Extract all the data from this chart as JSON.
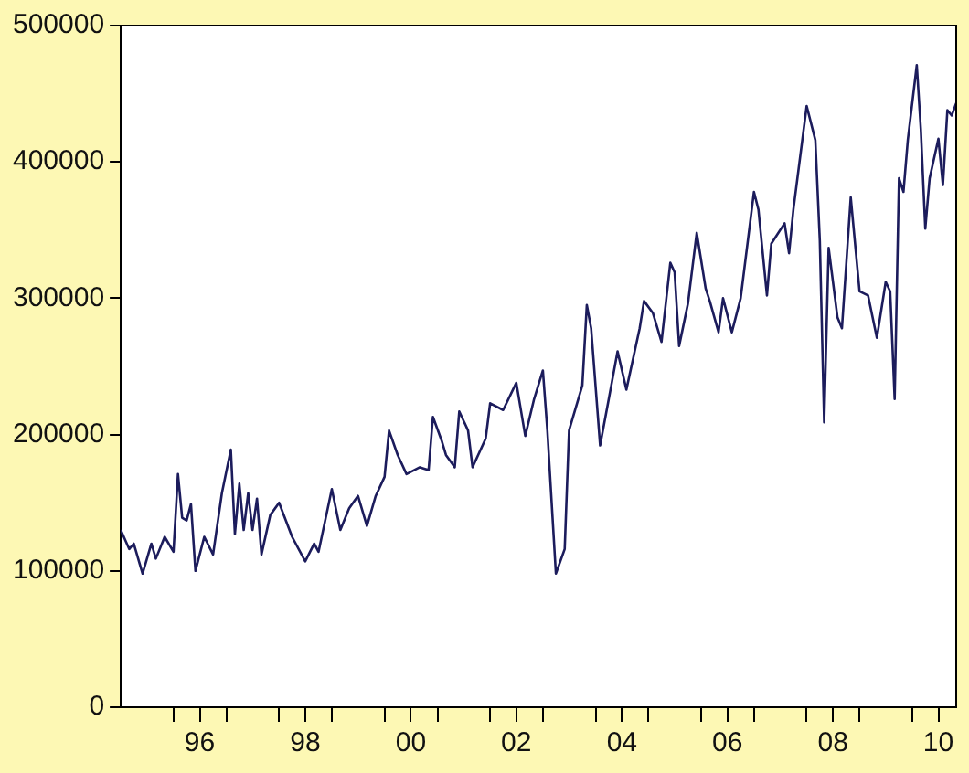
{
  "chart_data": {
    "type": "line",
    "color": "#1c1c5c",
    "line_style": "solid",
    "marker": "none",
    "grid": false,
    "legend": false,
    "x": [
      "1995-01",
      "1995-03",
      "1995-04",
      "1995-06",
      "1995-08",
      "1995-09",
      "1995-11",
      "1996-01",
      "1996-02",
      "1996-03",
      "1996-04",
      "1996-05",
      "1996-06",
      "1996-08",
      "1996-10",
      "1996-12",
      "1997-02",
      "1997-03",
      "1997-04",
      "1997-05",
      "1997-06",
      "1997-07",
      "1997-08",
      "1997-09",
      "1997-11",
      "1998-01",
      "1998-04",
      "1998-07",
      "1998-09",
      "1998-10",
      "1999-01",
      "1999-03",
      "1999-05",
      "1999-07",
      "1999-09",
      "1999-11",
      "2000-01",
      "2000-02",
      "2000-04",
      "2000-06",
      "2000-09",
      "2000-11",
      "2000-12",
      "2001-02",
      "2001-03",
      "2001-05",
      "2001-06",
      "2001-08",
      "2001-09",
      "2001-12",
      "2002-01",
      "2002-04",
      "2002-07",
      "2002-09",
      "2002-11",
      "2003-01",
      "2003-02",
      "2003-04",
      "2003-06",
      "2003-07",
      "2003-10",
      "2003-11",
      "2003-12",
      "2004-02",
      "2004-04",
      "2004-06",
      "2004-08",
      "2004-11",
      "2004-12",
      "2005-02",
      "2005-04",
      "2005-06",
      "2005-07",
      "2005-08",
      "2005-10",
      "2005-12",
      "2006-02",
      "2006-03",
      "2006-05",
      "2006-06",
      "2006-08",
      "2006-10",
      "2007-01",
      "2007-02",
      "2007-04",
      "2007-05",
      "2007-08",
      "2007-09",
      "2007-10",
      "2008-01",
      "2008-03",
      "2008-04",
      "2008-05",
      "2008-06",
      "2008-08",
      "2008-09",
      "2008-11",
      "2009-01",
      "2009-03",
      "2009-05",
      "2009-07",
      "2009-08",
      "2009-09",
      "2009-10",
      "2009-11",
      "2009-12",
      "2010-02",
      "2010-03",
      "2010-04",
      "2010-05",
      "2010-07",
      "2010-08",
      "2010-09",
      "2010-10",
      "2010-11"
    ],
    "values": [
      130000,
      116000,
      120000,
      98000,
      120000,
      109000,
      125000,
      114000,
      171000,
      139000,
      137000,
      149000,
      100000,
      125000,
      112000,
      157000,
      189000,
      127000,
      164000,
      130000,
      157000,
      130000,
      153000,
      112000,
      141000,
      150000,
      125000,
      107000,
      120000,
      114000,
      160000,
      130000,
      146000,
      155000,
      133000,
      155000,
      169000,
      203000,
      185000,
      171000,
      176000,
      174000,
      213000,
      195000,
      185000,
      176000,
      217000,
      203000,
      176000,
      197000,
      223000,
      218000,
      238000,
      199000,
      226000,
      247000,
      203000,
      98000,
      116000,
      203000,
      236000,
      295000,
      278000,
      192000,
      226000,
      261000,
      233000,
      278000,
      298000,
      289000,
      268000,
      326000,
      319000,
      265000,
      296000,
      348000,
      307000,
      298000,
      275000,
      300000,
      275000,
      300000,
      378000,
      365000,
      302000,
      340000,
      355000,
      333000,
      365000,
      441000,
      416000,
      342000,
      209000,
      337000,
      286000,
      278000,
      374000,
      305000,
      302000,
      271000,
      312000,
      305000,
      226000,
      388000,
      378000,
      416000,
      471000,
      424000,
      351000,
      388000,
      417000,
      383000,
      438000,
      434000,
      443000
    ],
    "xlim": [
      "1995-01",
      "2010-11"
    ],
    "xticks": [
      {
        "value": "1996-01",
        "label": null
      },
      {
        "value": "1996-07",
        "label": "96"
      },
      {
        "value": "1997-01",
        "label": null
      },
      {
        "value": "1998-01",
        "label": null
      },
      {
        "value": "1998-07",
        "label": "98"
      },
      {
        "value": "1999-01",
        "label": null
      },
      {
        "value": "2000-01",
        "label": null
      },
      {
        "value": "2000-07",
        "label": "00"
      },
      {
        "value": "2001-01",
        "label": null
      },
      {
        "value": "2002-01",
        "label": null
      },
      {
        "value": "2002-07",
        "label": "02"
      },
      {
        "value": "2003-01",
        "label": null
      },
      {
        "value": "2004-01",
        "label": null
      },
      {
        "value": "2004-07",
        "label": "04"
      },
      {
        "value": "2005-01",
        "label": null
      },
      {
        "value": "2006-01",
        "label": null
      },
      {
        "value": "2006-07",
        "label": "06"
      },
      {
        "value": "2007-01",
        "label": null
      },
      {
        "value": "2008-01",
        "label": null
      },
      {
        "value": "2008-07",
        "label": "08"
      },
      {
        "value": "2009-01",
        "label": null
      },
      {
        "value": "2010-01",
        "label": null
      },
      {
        "value": "2010-07",
        "label": "10"
      }
    ],
    "ylim": [
      0,
      500000
    ],
    "yticks": [
      0,
      100000,
      200000,
      300000,
      400000,
      500000
    ]
  }
}
